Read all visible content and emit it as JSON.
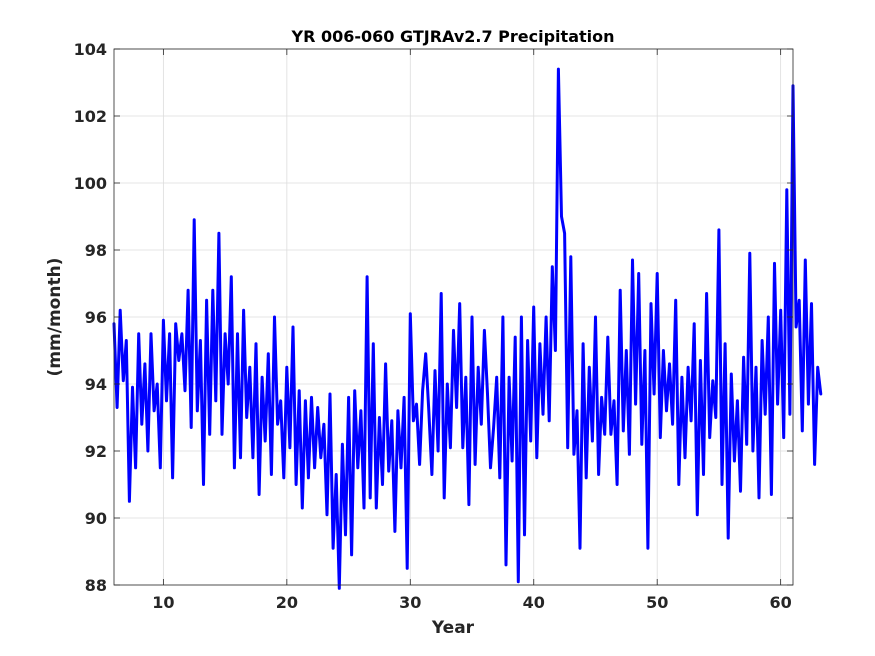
{
  "chart_data": {
    "type": "line",
    "title": "YR 006-060 GTJRAv2.7 Precipitation",
    "xlabel": "Year",
    "ylabel": "(mm/month)",
    "xlim": [
      6,
      61
    ],
    "ylim": [
      88,
      104
    ],
    "x_ticks": [
      10,
      20,
      30,
      40,
      50,
      60
    ],
    "y_ticks": [
      88,
      90,
      92,
      94,
      96,
      98,
      100,
      102,
      104
    ],
    "x_tick_labels": [
      "10",
      "20",
      "30",
      "40",
      "50",
      "60"
    ],
    "y_tick_labels": [
      "88",
      "90",
      "92",
      "94",
      "96",
      "98",
      "100",
      "102",
      "104"
    ],
    "grid": true,
    "box": true,
    "series": [
      {
        "color": "#0000ff",
        "x_start": 6.0,
        "x_step": 0.25,
        "values": [
          95.8,
          93.3,
          96.2,
          94.1,
          95.3,
          90.5,
          93.9,
          91.5,
          95.5,
          92.8,
          94.6,
          92.0,
          95.5,
          93.2,
          94.0,
          91.5,
          95.9,
          93.5,
          95.5,
          91.2,
          95.8,
          94.7,
          95.5,
          93.8,
          96.8,
          92.7,
          98.9,
          93.2,
          95.3,
          91.0,
          96.5,
          92.5,
          96.8,
          93.5,
          98.5,
          92.5,
          95.5,
          94.0,
          97.2,
          91.5,
          95.5,
          91.8,
          96.2,
          93.0,
          94.5,
          91.8,
          95.2,
          90.7,
          94.2,
          92.3,
          94.9,
          91.3,
          96.0,
          92.8,
          93.5,
          91.2,
          94.5,
          92.1,
          95.7,
          91.0,
          93.8,
          90.3,
          93.5,
          91.2,
          93.6,
          91.5,
          93.3,
          91.8,
          92.8,
          90.1,
          93.7,
          89.1,
          91.3,
          87.9,
          92.2,
          89.5,
          93.6,
          88.9,
          93.8,
          91.5,
          93.2,
          90.3,
          97.2,
          90.6,
          95.2,
          90.3,
          93.0,
          91.0,
          94.6,
          91.4,
          92.9,
          89.6,
          93.2,
          91.5,
          93.6,
          88.5,
          96.1,
          92.9,
          93.4,
          91.6,
          93.8,
          94.9,
          93.2,
          91.3,
          94.4,
          92.0,
          96.7,
          90.6,
          94.0,
          92.1,
          95.6,
          93.3,
          96.4,
          92.1,
          94.2,
          90.4,
          96.0,
          91.6,
          94.5,
          92.8,
          95.6,
          93.7,
          91.5,
          92.7,
          94.2,
          91.2,
          96.0,
          88.6,
          94.2,
          91.7,
          95.4,
          88.1,
          96.0,
          89.5,
          95.3,
          92.3,
          96.3,
          91.8,
          95.2,
          93.1,
          96.0,
          92.9,
          97.5,
          95.0,
          103.4,
          99.0,
          98.5,
          92.1,
          97.8,
          91.9,
          93.2,
          89.1,
          95.2,
          91.2,
          94.5,
          92.3,
          96.0,
          91.3,
          93.6,
          92.5,
          95.4,
          92.5,
          93.5,
          91.0,
          96.8,
          92.6,
          95.0,
          91.9,
          97.7,
          93.4,
          97.3,
          92.2,
          95.0,
          89.1,
          96.4,
          93.7,
          97.3,
          92.4,
          95.0,
          93.2,
          94.6,
          92.8,
          96.5,
          91.0,
          94.2,
          91.8,
          94.5,
          92.9,
          95.8,
          90.1,
          94.7,
          91.3,
          96.7,
          92.4,
          94.1,
          93.0,
          98.6,
          91.0,
          95.2,
          89.4,
          94.3,
          91.7,
          93.5,
          90.8,
          94.8,
          92.2,
          97.9,
          92.0,
          94.5,
          90.6,
          95.3,
          93.1,
          96.0,
          90.7,
          97.6,
          93.4,
          96.2,
          92.4,
          99.8,
          93.1,
          102.9,
          95.7,
          96.5,
          92.6,
          97.7,
          93.4,
          96.4,
          91.6,
          94.5,
          93.7
        ]
      }
    ]
  }
}
